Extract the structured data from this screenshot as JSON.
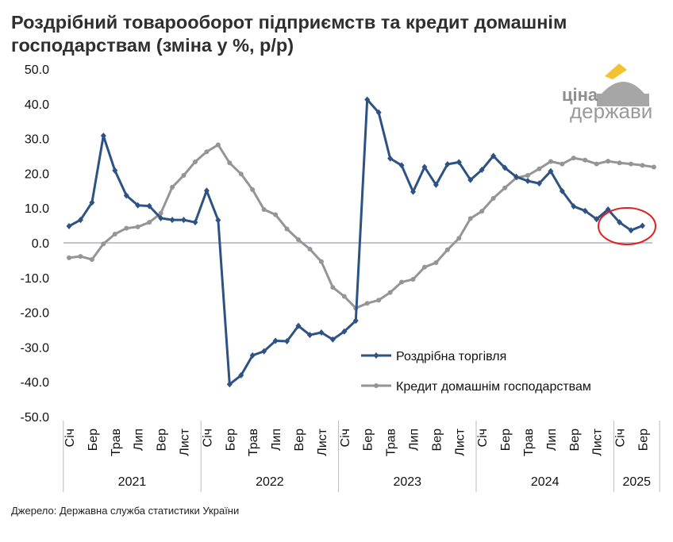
{
  "chart_data": {
    "type": "line",
    "title": "Роздрібний товарооборот підприємств та кредит домашнім господарствам (зміна у %, р/р)",
    "source": "Джерело: Державна служба статистики України",
    "logo_text": [
      "ціна",
      "держави"
    ],
    "ylim": [
      -50,
      50
    ],
    "yticks": [
      "50.0",
      "40.0",
      "30.0",
      "20.0",
      "10.0",
      "0.0",
      "-10.0",
      "-20.0",
      "-30.0",
      "-40.0",
      "-50.0"
    ],
    "month_labels": [
      "Січ",
      "Бер",
      "Трав",
      "Лип",
      "Вер",
      "Лист"
    ],
    "x_tick_labels": [
      "Січ",
      "Бер",
      "Трав",
      "Лип",
      "Вер",
      "Лист",
      "Січ",
      "Бер",
      "Трав",
      "Лип",
      "Вер",
      "Лист",
      "Січ",
      "Бер",
      "Трав",
      "Лип",
      "Вер",
      "Лист",
      "Січ",
      "Бер",
      "Трав",
      "Лип",
      "Вер",
      "Лист",
      "Січ",
      "Бер"
    ],
    "years": [
      {
        "label": "2021",
        "months": 12
      },
      {
        "label": "2022",
        "months": 12
      },
      {
        "label": "2023",
        "months": 12
      },
      {
        "label": "2024",
        "months": 12
      },
      {
        "label": "2025",
        "months": 4
      }
    ],
    "x_start": "2021-01",
    "legend_position": "bottom-right",
    "series": [
      {
        "name": "Роздрібна торгівля",
        "color": "#2e5283",
        "marker": "diamond",
        "values": [
          4.8,
          6.6,
          11.6,
          30.8,
          20.8,
          13.6,
          10.8,
          10.6,
          7.1,
          6.6,
          6.6,
          5.9,
          15.0,
          6.5,
          -40.7,
          -38.1,
          -32.4,
          -31.2,
          -28.2,
          -28.3,
          -23.9,
          -26.5,
          -25.8,
          -27.8,
          -25.5,
          -22.4,
          41.2,
          37.5,
          24.3,
          22.3,
          14.7,
          21.8,
          16.7,
          22.6,
          23.2,
          18.1,
          21.0,
          25.0,
          21.6,
          19.0,
          17.8,
          17.1,
          20.6,
          14.9,
          10.5,
          9.2,
          6.8,
          9.6,
          5.9,
          3.6,
          4.9
        ]
      },
      {
        "name": "Кредит домашнім господарствам",
        "color": "#959595",
        "marker": "circle",
        "values": [
          -4.3,
          -3.9,
          -4.8,
          -0.3,
          2.5,
          4.2,
          4.6,
          5.9,
          8.5,
          16.0,
          19.4,
          23.3,
          26.2,
          28.2,
          23.0,
          19.8,
          15.3,
          9.6,
          8.1,
          4.0,
          0.9,
          -1.8,
          -5.4,
          -12.8,
          -15.4,
          -18.8,
          -17.4,
          -16.5,
          -14.3,
          -11.3,
          -10.5,
          -7.0,
          -5.7,
          -2.0,
          1.3,
          7.0,
          9.1,
          12.8,
          15.8,
          18.7,
          19.4,
          21.3,
          23.4,
          22.7,
          24.4,
          23.8,
          22.7,
          23.5,
          23.0,
          22.7,
          22.3,
          21.8
        ]
      }
    ],
    "annotation": {
      "type": "ellipse",
      "color": "#e02020",
      "highlights": "Роздрібна торгівля, 2025"
    }
  }
}
